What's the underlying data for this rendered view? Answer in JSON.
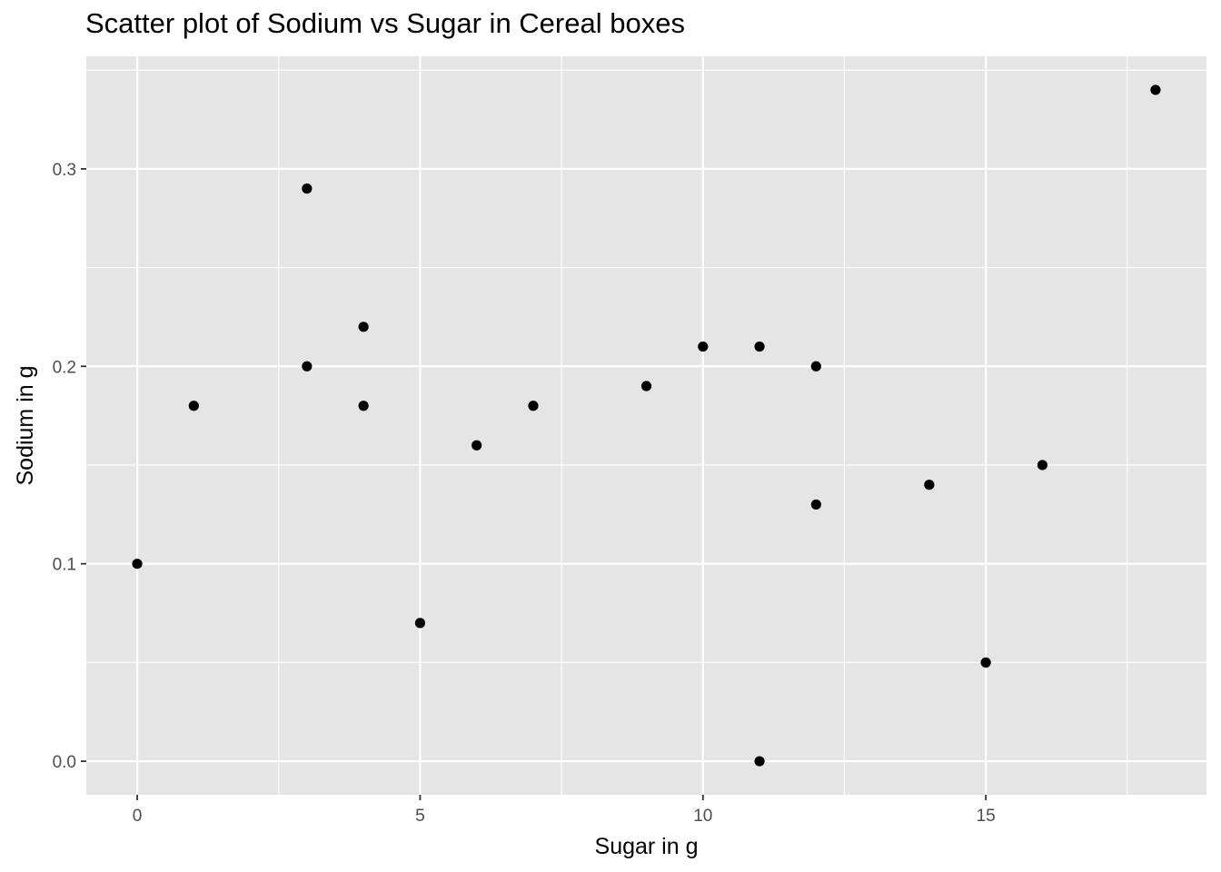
{
  "chart_data": {
    "type": "scatter",
    "title": "Scatter plot of Sodium vs Sugar in Cereal boxes",
    "xlabel": "Sugar in g",
    "ylabel": "Sodium in g",
    "xlim": [
      -0.9,
      18.9
    ],
    "ylim": [
      -0.017,
      0.357
    ],
    "x_ticks": [
      0,
      5,
      10,
      15
    ],
    "x_tick_labels": [
      "0",
      "5",
      "10",
      "15"
    ],
    "y_ticks": [
      0.0,
      0.1,
      0.2,
      0.3
    ],
    "y_tick_labels": [
      "0.0",
      "0.1",
      "0.2",
      "0.3"
    ],
    "grid": true,
    "background_color": "#e5e5e5",
    "grid_color": "#ffffff",
    "point_color": "#000000",
    "points": [
      {
        "x": 0,
        "y": 0.1
      },
      {
        "x": 1,
        "y": 0.18
      },
      {
        "x": 3,
        "y": 0.29
      },
      {
        "x": 3,
        "y": 0.2
      },
      {
        "x": 4,
        "y": 0.22
      },
      {
        "x": 4,
        "y": 0.18
      },
      {
        "x": 5,
        "y": 0.07
      },
      {
        "x": 6,
        "y": 0.16
      },
      {
        "x": 7,
        "y": 0.18
      },
      {
        "x": 9,
        "y": 0.19
      },
      {
        "x": 10,
        "y": 0.21
      },
      {
        "x": 11,
        "y": 0.21
      },
      {
        "x": 11,
        "y": 0.0
      },
      {
        "x": 12,
        "y": 0.2
      },
      {
        "x": 12,
        "y": 0.13
      },
      {
        "x": 14,
        "y": 0.14
      },
      {
        "x": 15,
        "y": 0.05
      },
      {
        "x": 16,
        "y": 0.15
      },
      {
        "x": 18,
        "y": 0.34
      }
    ]
  }
}
